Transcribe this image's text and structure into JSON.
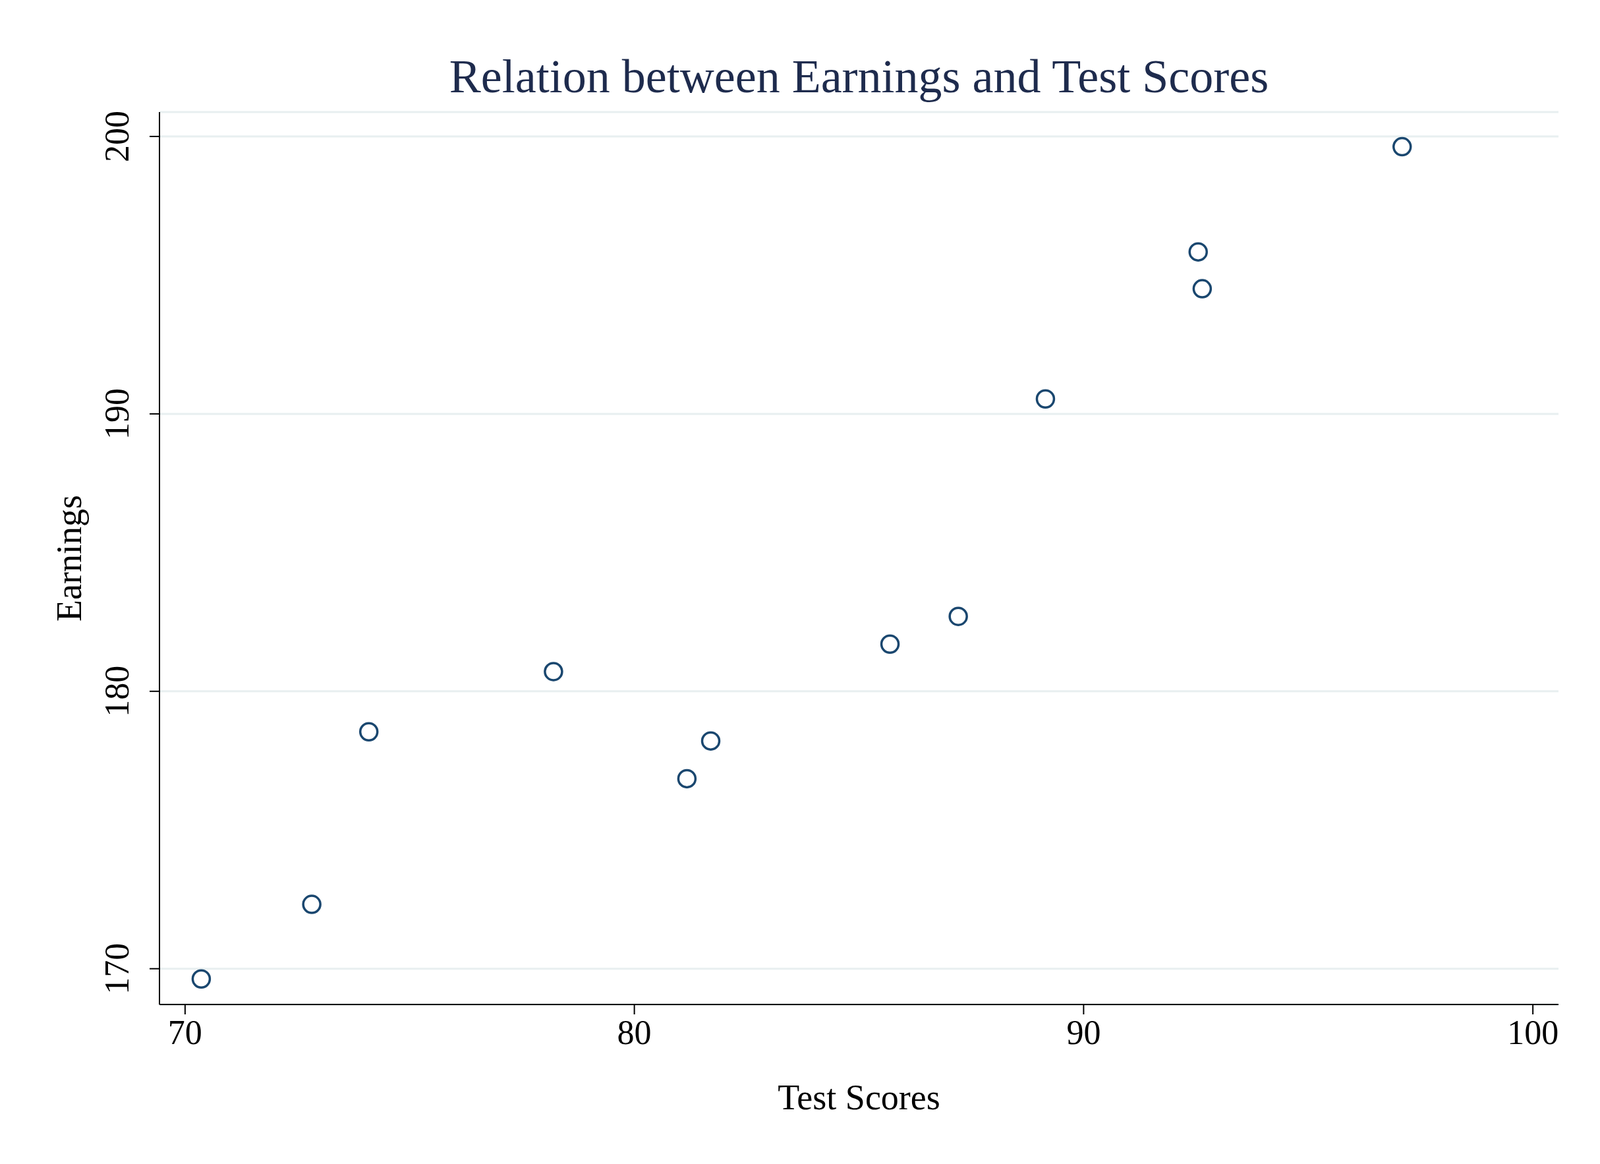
{
  "chart_data": {
    "type": "scatter",
    "title": "Relation between Earnings and Test Scores",
    "x_label": "Test Scores",
    "y_label": "Earnings",
    "x": [
      70.36,
      72.82,
      74.09,
      78.2,
      81.17,
      81.7,
      85.69,
      87.21,
      89.15,
      92.55,
      92.64,
      97.09
    ],
    "values": [
      169.63,
      172.32,
      178.54,
      180.71,
      176.85,
      178.21,
      181.7,
      182.7,
      190.54,
      195.84,
      194.51,
      199.63
    ],
    "color": "#1a476f",
    "marker": "circle",
    "xlim": [
      69.43,
      100.57
    ],
    "ylim": [
      168.71,
      200.88
    ],
    "xticks": [
      70,
      80,
      90,
      100
    ],
    "yticks": [
      170,
      180,
      190,
      200
    ],
    "grid": true
  }
}
